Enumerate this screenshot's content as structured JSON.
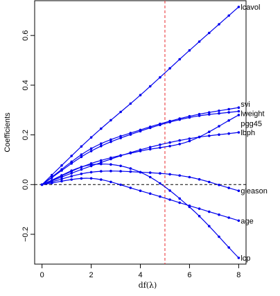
{
  "chart_data": {
    "type": "line",
    "xlabel": "df(λ)",
    "ylabel": "Coefficients",
    "xlim": [
      -0.3,
      8.3
    ],
    "ylim": [
      -0.32,
      0.74
    ],
    "x_ticks": [
      "0",
      "2",
      "4",
      "6",
      "8"
    ],
    "y_ticks": [
      "−0.2",
      "0.0",
      "0.2",
      "0.4",
      "0.6"
    ],
    "reference_lines": {
      "horizontal_y": 0.0,
      "vertical_x": 5.0,
      "vertical_color": "#e8292d",
      "horizontal_color": "#000000"
    },
    "series_color": "#0000ee",
    "x_knots": [
      0,
      2,
      4,
      6,
      8
    ],
    "series": [
      {
        "name": "lcavol",
        "values": [
          0.0,
          0.19,
          0.36,
          0.54,
          0.715
        ]
      },
      {
        "name": "svi",
        "values": [
          0.0,
          0.145,
          0.22,
          0.275,
          0.31
        ]
      },
      {
        "name": "lweight",
        "values": [
          0.0,
          0.135,
          0.215,
          0.27,
          0.295
        ]
      },
      {
        "name": "pgg45",
        "values": [
          0.0,
          0.085,
          0.135,
          0.175,
          0.28
        ]
      },
      {
        "name": "lbph",
        "values": [
          0.0,
          0.075,
          0.14,
          0.185,
          0.21
        ]
      },
      {
        "name": "gleason",
        "values": [
          0.0,
          0.05,
          0.05,
          0.03,
          -0.025
        ]
      },
      {
        "name": "age",
        "values": [
          0.0,
          0.025,
          -0.025,
          -0.085,
          -0.145
        ]
      },
      {
        "name": "lcp",
        "values": [
          0.0,
          0.08,
          0.05,
          -0.09,
          -0.295
        ]
      }
    ]
  }
}
